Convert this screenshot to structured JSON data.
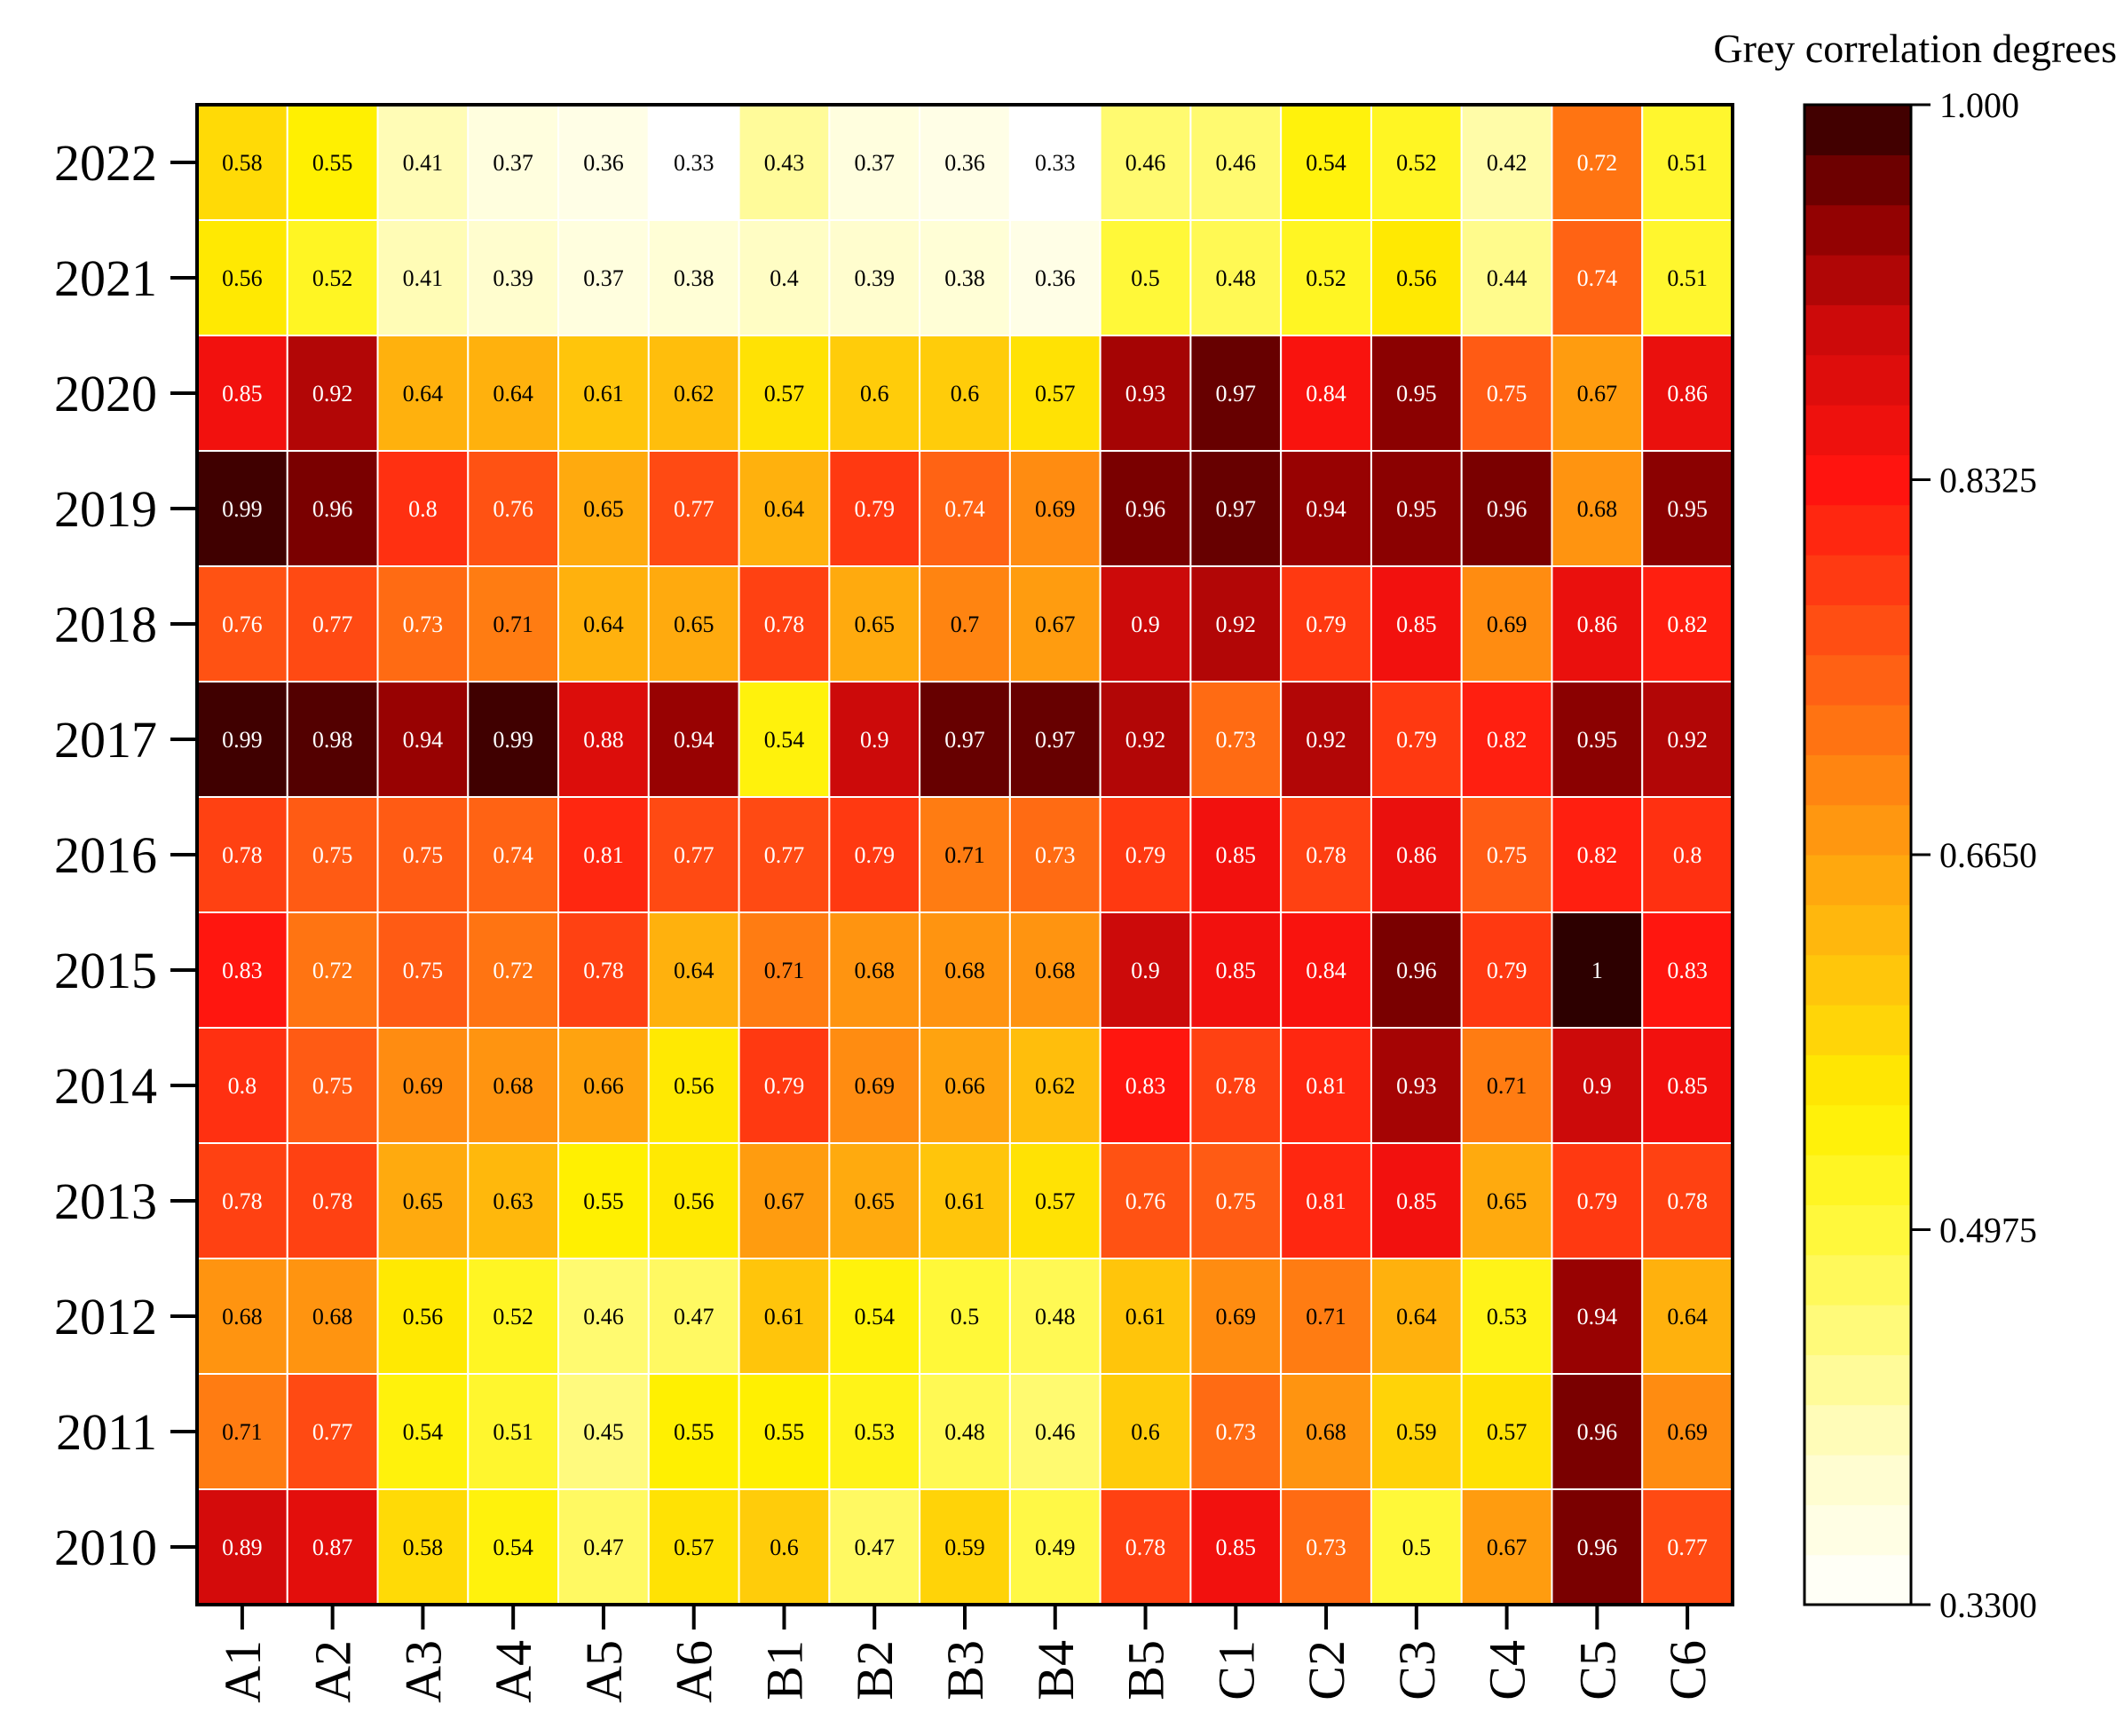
{
  "chart_data": {
    "type": "heatmap",
    "colorbar_title": "Grey correlation degrees",
    "x_categories": [
      "A1",
      "A2",
      "A3",
      "A4",
      "A5",
      "A6",
      "B1",
      "B2",
      "B3",
      "B4",
      "B5",
      "C1",
      "C2",
      "C3",
      "C4",
      "C5",
      "C6"
    ],
    "y_categories": [
      "2022",
      "2021",
      "2020",
      "2019",
      "2018",
      "2017",
      "2016",
      "2015",
      "2014",
      "2013",
      "2012",
      "2011",
      "2010"
    ],
    "values": [
      [
        0.58,
        0.55,
        0.41,
        0.37,
        0.36,
        0.33,
        0.43,
        0.37,
        0.36,
        0.33,
        0.46,
        0.46,
        0.54,
        0.52,
        0.42,
        0.72,
        0.51
      ],
      [
        0.56,
        0.52,
        0.41,
        0.39,
        0.37,
        0.38,
        0.4,
        0.39,
        0.38,
        0.36,
        0.5,
        0.48,
        0.52,
        0.56,
        0.44,
        0.74,
        0.51
      ],
      [
        0.85,
        0.92,
        0.64,
        0.64,
        0.61,
        0.62,
        0.57,
        0.6,
        0.6,
        0.57,
        0.93,
        0.97,
        0.84,
        0.95,
        0.75,
        0.67,
        0.86
      ],
      [
        0.99,
        0.96,
        0.8,
        0.76,
        0.65,
        0.77,
        0.64,
        0.79,
        0.74,
        0.69,
        0.96,
        0.97,
        0.94,
        0.95,
        0.96,
        0.68,
        0.95
      ],
      [
        0.76,
        0.77,
        0.73,
        0.71,
        0.64,
        0.65,
        0.78,
        0.65,
        0.7,
        0.67,
        0.9,
        0.92,
        0.79,
        0.85,
        0.69,
        0.86,
        0.82
      ],
      [
        0.99,
        0.98,
        0.94,
        0.99,
        0.88,
        0.94,
        0.54,
        0.9,
        0.97,
        0.97,
        0.92,
        0.73,
        0.92,
        0.79,
        0.82,
        0.95,
        0.92
      ],
      [
        0.78,
        0.75,
        0.75,
        0.74,
        0.81,
        0.77,
        0.77,
        0.79,
        0.71,
        0.73,
        0.79,
        0.85,
        0.78,
        0.86,
        0.75,
        0.82,
        0.8
      ],
      [
        0.83,
        0.72,
        0.75,
        0.72,
        0.78,
        0.64,
        0.71,
        0.68,
        0.68,
        0.68,
        0.9,
        0.85,
        0.84,
        0.96,
        0.79,
        1,
        0.83
      ],
      [
        0.8,
        0.75,
        0.69,
        0.68,
        0.66,
        0.56,
        0.79,
        0.69,
        0.66,
        0.62,
        0.83,
        0.78,
        0.81,
        0.93,
        0.71,
        0.9,
        0.85
      ],
      [
        0.78,
        0.78,
        0.65,
        0.63,
        0.55,
        0.56,
        0.67,
        0.65,
        0.61,
        0.57,
        0.76,
        0.75,
        0.81,
        0.85,
        0.65,
        0.79,
        0.78
      ],
      [
        0.68,
        0.68,
        0.56,
        0.52,
        0.46,
        0.47,
        0.61,
        0.54,
        0.5,
        0.48,
        0.61,
        0.69,
        0.71,
        0.64,
        0.53,
        0.94,
        0.64
      ],
      [
        0.71,
        0.77,
        0.54,
        0.51,
        0.45,
        0.55,
        0.55,
        0.53,
        0.48,
        0.46,
        0.6,
        0.73,
        0.68,
        0.59,
        0.57,
        0.96,
        0.69
      ],
      [
        0.89,
        0.87,
        0.58,
        0.54,
        0.47,
        0.57,
        0.6,
        0.47,
        0.59,
        0.49,
        0.78,
        0.85,
        0.73,
        0.5,
        0.67,
        0.96,
        0.77
      ]
    ],
    "colorbar_range": [
      0.33,
      1.0
    ],
    "colorbar_ticks": [
      "0.3300",
      "0.4975",
      "0.6650",
      "0.8325",
      "1.000"
    ],
    "colormap": "hot (white-yellow-orange-red-black)",
    "legend_placement": "right"
  }
}
